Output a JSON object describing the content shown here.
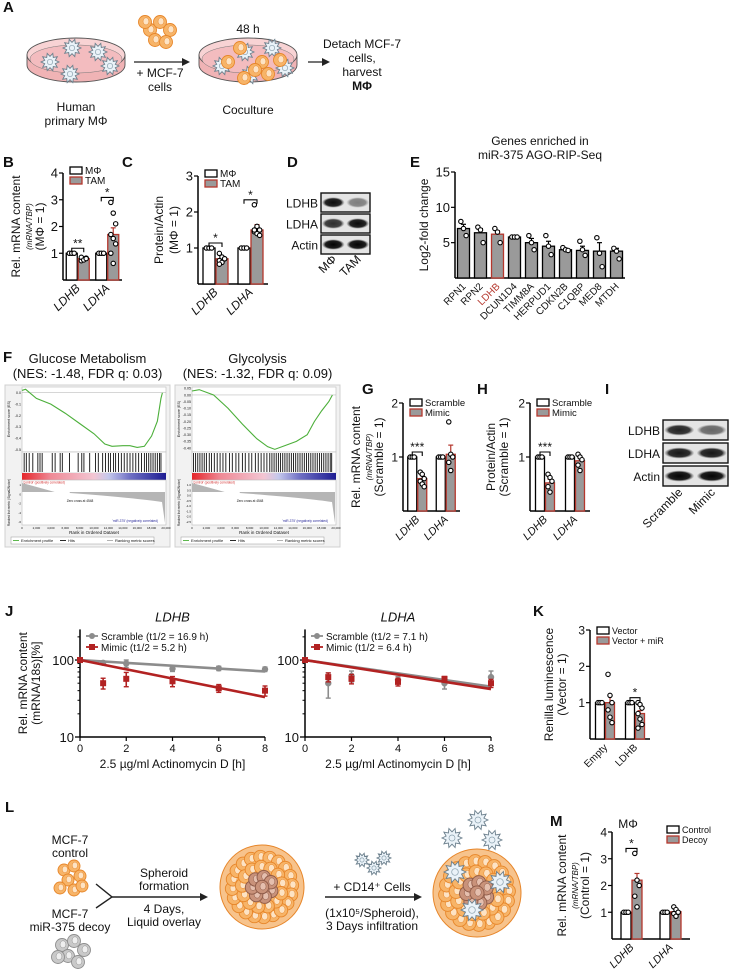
{
  "panel_letters": {
    "A": "A",
    "B": "B",
    "C": "C",
    "D": "D",
    "E": "E",
    "F": "F",
    "G": "G",
    "H": "H",
    "I": "I",
    "J": "J",
    "K": "K",
    "L": "L",
    "M": "M"
  },
  "panel_a": {
    "time": "48 h",
    "add_cells": [
      "+ MCF-7",
      "cells"
    ],
    "start_label": [
      "Human",
      "primary MΦ"
    ],
    "coculture_label": "Coculture",
    "detach": [
      "Detach MCF-7",
      "cells,",
      "harvest",
      "MΦ"
    ]
  },
  "panel_d": {
    "rows": [
      "LDHB",
      "LDHA",
      "Actin"
    ],
    "lanes": [
      "MΦ",
      "TAM"
    ],
    "band_intensity": [
      [
        0.95,
        0.45
      ],
      [
        0.8,
        0.95
      ],
      [
        0.98,
        0.98
      ]
    ]
  },
  "panel_i": {
    "rows": [
      "LDHB",
      "LDHA",
      "Actin"
    ],
    "lanes": [
      "Scramble",
      "Mimic"
    ],
    "band_intensity": [
      [
        0.85,
        0.55
      ],
      [
        0.9,
        0.9
      ],
      [
        0.98,
        0.98
      ]
    ]
  },
  "panel_l": {
    "control_label": [
      "MCF-7",
      "control"
    ],
    "decoy_label": [
      "MCF-7",
      "miR-375 decoy"
    ],
    "step1": [
      "Spheroid",
      "formation",
      "4 Days,",
      "Liquid overlay"
    ],
    "step2": [
      "+ CD14⁺ Cells",
      "(1x10⁵/Spheroid),",
      "3 Days infiltration"
    ]
  },
  "colors": {
    "filled_bar": "#9a9a9a",
    "accent_red": "#b5372d",
    "scramble_gray": "#8c8c8c",
    "mimic_red": "#b22222",
    "es_green": "#4caf3a"
  },
  "chart_data": [
    {
      "id": "B",
      "type": "bar",
      "ylabel": [
        "Rel. mRNA content",
        "(mRNA/TBP)",
        "(MΦ = 1)"
      ],
      "ylim": [
        0,
        4
      ],
      "yticks": [
        1,
        2,
        3,
        4
      ],
      "categories": [
        "LDHB",
        "LDHA"
      ],
      "series": [
        {
          "name": "MΦ",
          "style": "open",
          "values": [
            1,
            1
          ],
          "points": [
            [
              1,
              1,
              1
            ],
            [
              1,
              1,
              1
            ]
          ]
        },
        {
          "name": "TAM",
          "style": "filled",
          "values": [
            0.8,
            1.7
          ],
          "errors": [
            0.04,
            0.25
          ],
          "points": [
            [
              0.72,
              0.78,
              0.82,
              0.85,
              0.75,
              0.8
            ],
            [
              2.9,
              2.5,
              2.1,
              1.7,
              1.55,
              1.35,
              1.0,
              0.62
            ]
          ]
        }
      ],
      "significance": [
        "**",
        "*"
      ],
      "legend": "top-left"
    },
    {
      "id": "C",
      "type": "bar",
      "ylabel": [
        "Protein/Actin",
        "(MΦ = 1)"
      ],
      "ylim": [
        0,
        3
      ],
      "yticks": [
        1,
        2,
        3
      ],
      "categories": [
        "LDHB",
        "LDHA"
      ],
      "series": [
        {
          "name": "MΦ",
          "style": "open",
          "values": [
            1,
            1
          ],
          "points": [
            [
              1,
              1,
              1
            ],
            [
              1,
              1,
              1
            ]
          ]
        },
        {
          "name": "TAM",
          "style": "filled",
          "values": [
            0.7,
            1.5
          ],
          "errors": [
            0.05,
            0.15
          ],
          "points": [
            [
              0.85,
              0.75,
              0.7,
              0.65,
              0.6,
              0.7,
              0.55
            ],
            [
              2.2,
              1.6,
              1.5,
              1.45,
              1.4,
              1.35,
              1.5
            ]
          ]
        }
      ],
      "significance": [
        "*",
        "*"
      ],
      "legend": "top-left"
    },
    {
      "id": "E",
      "type": "bar",
      "title": [
        "Genes enriched in",
        "miR-375 AGO-RIP-Seq"
      ],
      "ylabel": [
        "Log2-fold change"
      ],
      "ylim": [
        0,
        15
      ],
      "yticks": [
        5,
        10,
        15
      ],
      "categories": [
        "RPN1",
        "RPN2",
        "LDHB",
        "DCUN1D4",
        "TIMM8A",
        "HERPUD1",
        "CDKN2B",
        "C1QBP",
        "MED8",
        "MTDH"
      ],
      "highlight": 2,
      "series": [
        {
          "name": "Log2-fold change",
          "style": "gray",
          "values": [
            7.0,
            6.4,
            6.2,
            5.8,
            5.0,
            4.5,
            4.0,
            3.9,
            3.8,
            3.8
          ],
          "errors": [
            0.6,
            0.6,
            0.5,
            0.05,
            0.6,
            0.7,
            0.2,
            0.6,
            1.2,
            0.4
          ],
          "points": [
            [
              8,
              7,
              6
            ],
            [
              7.2,
              6.8,
              5
            ],
            [
              7,
              6.5,
              5
            ],
            [
              5.8,
              5.8,
              5.8
            ],
            [
              6,
              5,
              4
            ],
            [
              6,
              4.5,
              3.3
            ],
            [
              4.3,
              4,
              3.9
            ],
            [
              5.2,
              4,
              3.2
            ],
            [
              5.7,
              3.5,
              1.6
            ],
            [
              4.2,
              3.8,
              2.7
            ]
          ]
        }
      ]
    },
    {
      "id": "F1",
      "type": "line",
      "title": "Glucose Metabolism",
      "subtitle": "(NES: -1.48, FDR q: 0.03)",
      "ylabel": "Enrichment score (ES)",
      "ylim": [
        -0.52,
        0.05
      ],
      "yticks": [
        "0.0",
        "-0.1",
        "-0.2",
        "-0.3",
        "-0.4",
        "-0.5"
      ],
      "ytick_values": [
        0,
        -0.1,
        -0.2,
        -0.3,
        -0.4,
        -0.5
      ],
      "xlim": [
        0,
        20000
      ],
      "xticks": [
        "0",
        "2,000",
        "4,000",
        "6,000",
        "8,000",
        "10,000",
        "12,000",
        "14,000",
        "16,000",
        "18,000",
        "20,000"
      ],
      "xlabel": "Rank in Ordered Dataset",
      "es_curve": [
        [
          0,
          0.02
        ],
        [
          500,
          0.03
        ],
        [
          2000,
          -0.05
        ],
        [
          4000,
          -0.1
        ],
        [
          6000,
          -0.18
        ],
        [
          8000,
          -0.27
        ],
        [
          10000,
          -0.36
        ],
        [
          11500,
          -0.45
        ],
        [
          12500,
          -0.47
        ],
        [
          14000,
          -0.465
        ],
        [
          15000,
          -0.465
        ],
        [
          16000,
          -0.48
        ],
        [
          17000,
          -0.47
        ],
        [
          18000,
          -0.38
        ],
        [
          18800,
          -0.25
        ],
        [
          19300,
          -0.05
        ],
        [
          19500,
          0.0
        ]
      ],
      "hits": [
        300,
        600,
        1000,
        1500,
        2200,
        2500,
        2800,
        4200,
        4600,
        5300,
        5600,
        6600,
        7800,
        8300,
        8600,
        9400,
        10200,
        10600,
        11200,
        11600,
        12000,
        12300,
        12700,
        13000,
        13400,
        13800,
        14200,
        14600,
        15000,
        15400,
        15800,
        16200,
        16600,
        17000,
        17300,
        17600,
        17900,
        18200,
        18500,
        18800,
        19100,
        19300
      ],
      "metric_label": "Ranked list metric (Signal2Noise)",
      "metric_ticks": [
        "1",
        "0",
        "-2",
        "-4",
        "-6"
      ],
      "pos_label": "'control' (positively correlated)",
      "neg_label": "'miR-375' (negatively correlated)",
      "zero_cross": "Zero cross at 4548",
      "legend": [
        "Enrichment profile",
        "Hits",
        "Ranking metric scores"
      ]
    },
    {
      "id": "F2",
      "type": "line",
      "title": "Glycolysis",
      "subtitle": "(NES: -1.32, FDR q: 0.09)",
      "ylabel": "Enrichment score (ES)",
      "ylim": [
        -0.43,
        0.06
      ],
      "yticks": [
        "0.05",
        "0.00",
        "-0.05",
        "-0.10",
        "-0.15",
        "-0.20",
        "-0.25",
        "-0.30",
        "-0.35",
        "-0.40"
      ],
      "ytick_values": [
        0.05,
        0,
        -0.05,
        -0.1,
        -0.15,
        -0.2,
        -0.25,
        -0.3,
        -0.35,
        -0.4
      ],
      "xlim": [
        0,
        20000
      ],
      "xticks": [
        "0",
        "2,000",
        "4,000",
        "6,000",
        "8,000",
        "10,000",
        "12,000",
        "14,000",
        "16,000",
        "18,000",
        "20,000"
      ],
      "xlabel": "Rank in Ordered Dataset",
      "es_curve": [
        [
          0,
          0.03
        ],
        [
          1000,
          0.04
        ],
        [
          3000,
          0.0
        ],
        [
          5000,
          -0.1
        ],
        [
          7000,
          -0.22
        ],
        [
          9000,
          -0.33
        ],
        [
          10500,
          -0.39
        ],
        [
          11500,
          -0.41
        ],
        [
          13000,
          -0.38
        ],
        [
          14500,
          -0.35
        ],
        [
          16000,
          -0.3
        ],
        [
          17000,
          -0.2
        ],
        [
          18000,
          -0.12
        ],
        [
          19000,
          -0.05
        ],
        [
          19500,
          0.0
        ]
      ],
      "hits": [
        200,
        500,
        800,
        1100,
        1400,
        1700,
        2000,
        2400,
        2700,
        3100,
        3500,
        3900,
        4300,
        4700,
        5200,
        5600,
        6100,
        6500,
        7000,
        7400,
        7900,
        8300,
        8800,
        9200,
        9600,
        10000,
        10400,
        10800,
        11100,
        11400,
        11700,
        12000,
        12300,
        12600,
        12900,
        13200,
        13500,
        13800,
        14100,
        14400,
        14700,
        15000,
        15300,
        15600,
        15900,
        16200,
        16500,
        16800,
        17100,
        17400,
        17700,
        18000,
        18300,
        18600,
        18900,
        19200,
        19400
      ],
      "metric_label": "Ranked list metric (Signal2Noise)",
      "metric_ticks": [
        "1.0",
        "0.5",
        "0.0",
        "-0.5",
        "-1.0",
        "-1.5",
        "-2.0",
        "-2.5"
      ],
      "pos_label": "'control' (positively correlated)",
      "neg_label": "'miR-375' (negatively correlated)",
      "zero_cross": "Zero cross at 4548",
      "legend": [
        "Enrichment profile",
        "Hits",
        "Ranking metric scores"
      ]
    },
    {
      "id": "G",
      "type": "bar",
      "ylabel": [
        "Rel. mRNA content",
        "(mRNA/TBP)",
        "(Scramble = 1)"
      ],
      "ylim": [
        0,
        2
      ],
      "yticks": [
        1,
        2
      ],
      "categories": [
        "LDHB",
        "LDHA"
      ],
      "series": [
        {
          "name": "Scramble",
          "style": "open",
          "values": [
            1,
            1
          ],
          "points": [
            [
              1,
              1,
              1
            ],
            [
              1,
              1,
              1
            ]
          ]
        },
        {
          "name": "Mimic",
          "style": "filled",
          "values": [
            0.6,
            1.05
          ],
          "errors": [
            0.06,
            0.17
          ],
          "points": [
            [
              0.72,
              0.68,
              0.6,
              0.55,
              0.5,
              0.45
            ],
            [
              1.65,
              1.05,
              1.0,
              0.9,
              0.75
            ]
          ]
        }
      ],
      "significance": [
        "***",
        null
      ],
      "legend": "top-left"
    },
    {
      "id": "H",
      "type": "bar",
      "ylabel": [
        "Protein/Actin",
        "(Scramble = 1)"
      ],
      "ylim": [
        0,
        2
      ],
      "yticks": [
        1,
        2
      ],
      "categories": [
        "LDHB",
        "LDHA"
      ],
      "series": [
        {
          "name": "Scramble",
          "style": "open",
          "values": [
            1,
            1
          ],
          "points": [
            [
              1,
              1,
              1
            ],
            [
              1,
              1,
              1
            ]
          ]
        },
        {
          "name": "Mimic",
          "style": "filled",
          "values": [
            0.52,
            0.93
          ],
          "errors": [
            0.07,
            0.05
          ],
          "points": [
            [
              0.68,
              0.62,
              0.55,
              0.45,
              0.35
            ],
            [
              1.05,
              1.0,
              0.95,
              0.85,
              0.75
            ]
          ]
        }
      ],
      "significance": [
        "***",
        null
      ],
      "legend": "top-left"
    },
    {
      "id": "J1",
      "type": "line",
      "title": "LDHB",
      "ylabel": [
        "Rel. mRNA content",
        "(mRNA/18s)[%]"
      ],
      "yscale": "log",
      "ylim": [
        10,
        250
      ],
      "yticks": [
        10,
        100
      ],
      "xlim": [
        0,
        8
      ],
      "xticks": [
        0,
        2,
        4,
        6,
        8
      ],
      "xlabel": "2.5 µg/ml Actinomycin D [h]",
      "x": [
        0,
        1,
        2,
        4,
        6,
        8
      ],
      "series": [
        {
          "name": "Scramble (t1/2 = 16.9 h)",
          "color": "#8c8c8c",
          "marker": "circle",
          "values": [
            100,
            92,
            90,
            77,
            78,
            76
          ],
          "errors": [
            3,
            4,
            10,
            6,
            5,
            5
          ],
          "fit": [
            100,
            71
          ]
        },
        {
          "name": "Mimic (t1/2 = 5.2 h)",
          "color": "#b22222",
          "marker": "square",
          "values": [
            100,
            50,
            57,
            53,
            43,
            40
          ],
          "errors": [
            3,
            8,
            12,
            8,
            5,
            6
          ],
          "fit": [
            100,
            33
          ]
        }
      ],
      "legend": "top-left"
    },
    {
      "id": "J2",
      "type": "line",
      "title": "LDHA",
      "ylabel": [],
      "yscale": "log",
      "ylim": [
        10,
        250
      ],
      "yticks": [
        10,
        100
      ],
      "xlim": [
        0,
        8
      ],
      "xticks": [
        0,
        2,
        4,
        6,
        8
      ],
      "xlabel": "2.5 µg/ml Actinomycin D [h]",
      "x": [
        0,
        1,
        2,
        4,
        6,
        8
      ],
      "series": [
        {
          "name": "Scramble (t1/2 = 7.1 h)",
          "color": "#8c8c8c",
          "marker": "circle",
          "values": [
            100,
            50,
            62,
            55,
            50,
            60
          ],
          "errors": [
            3,
            18,
            10,
            6,
            8,
            12
          ],
          "fit": [
            100,
            45
          ]
        },
        {
          "name": "Mimic (t1/2 = 6.4 h)",
          "color": "#b22222",
          "marker": "square",
          "values": [
            100,
            60,
            57,
            52,
            57,
            50
          ],
          "errors": [
            3,
            8,
            8,
            6,
            4,
            6
          ],
          "fit": [
            100,
            42
          ]
        }
      ],
      "legend": "top-left"
    },
    {
      "id": "K",
      "type": "bar",
      "ylabel": [
        "Renilla luminescence",
        "(Vector = 1)"
      ],
      "ylim": [
        0,
        3
      ],
      "yticks": [
        1,
        2,
        3
      ],
      "categories": [
        "Empty",
        "LDHB"
      ],
      "series": [
        {
          "name": "Vector",
          "style": "open",
          "values": [
            1,
            1
          ],
          "points": [
            [
              1,
              1,
              1
            ],
            [
              1,
              1,
              1
            ]
          ]
        },
        {
          "name": "Vector + miR",
          "style": "filled",
          "values": [
            1.0,
            0.7
          ],
          "errors": [
            0.2,
            0.08
          ],
          "points": [
            [
              1.78,
              1.2,
              1.0,
              0.8,
              0.6,
              0.45
            ],
            [
              1.0,
              0.95,
              0.85,
              0.7,
              0.55,
              0.4,
              0.3
            ]
          ]
        }
      ],
      "significance": [
        null,
        "*"
      ],
      "legend": "top-left"
    },
    {
      "id": "M",
      "type": "bar",
      "title": [
        "MΦ"
      ],
      "ylabel": [
        "Rel. mRNA content",
        "(mRNA/TBP)",
        "(Control = 1)"
      ],
      "ylim": [
        0,
        4
      ],
      "yticks": [
        1,
        2,
        3,
        4
      ],
      "categories": [
        "LDHB",
        "LDHA"
      ],
      "series": [
        {
          "name": "Control",
          "style": "open",
          "values": [
            1,
            1
          ],
          "points": [
            [
              1,
              1,
              1
            ],
            [
              1,
              1,
              1
            ]
          ]
        },
        {
          "name": "Decoy",
          "style": "filled",
          "values": [
            2.2,
            1.02
          ],
          "errors": [
            0.25,
            0.06
          ],
          "points": [
            [
              3.2,
              2.2,
              2.0,
              1.6,
              1.2
            ],
            [
              1.2,
              1.1,
              1.0,
              0.95,
              0.85
            ]
          ]
        }
      ],
      "significance": [
        "*",
        null
      ],
      "legend": "top-right"
    }
  ]
}
